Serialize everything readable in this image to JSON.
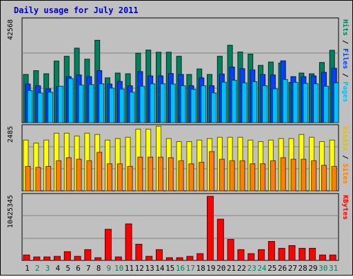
{
  "chart_data": {
    "type": "bar",
    "title": "Daily usage for July 2011",
    "categories": [
      "1",
      "2",
      "3",
      "4",
      "5",
      "6",
      "7",
      "8",
      "9",
      "10",
      "11",
      "12",
      "13",
      "14",
      "15",
      "16",
      "17",
      "18",
      "19",
      "20",
      "21",
      "22",
      "23",
      "24",
      "25",
      "26",
      "27",
      "28",
      "29",
      "30",
      "31"
    ],
    "weekend_days": [
      "2",
      "3",
      "9",
      "10",
      "16",
      "17",
      "23",
      "24",
      "30",
      "31"
    ],
    "panels": [
      {
        "id": "hits",
        "max_label": "42568",
        "ylim": [
          0,
          42568
        ],
        "right_labels": [
          {
            "text": "Hits",
            "color": "#00805c"
          },
          {
            "text": " / ",
            "color": "#000000"
          },
          {
            "text": "Files",
            "color": "#0040ff"
          },
          {
            "text": " / ",
            "color": "#000000"
          },
          {
            "text": "Pages",
            "color": "#00c0ff"
          }
        ],
        "series": [
          {
            "name": "Hits",
            "color": "#00805c",
            "values": [
              20100,
              21700,
              20400,
              25700,
              27700,
              31100,
              26500,
              34400,
              18700,
              20700,
              20400,
              29000,
              30300,
              29400,
              29400,
              27700,
              20100,
              22400,
              20100,
              27700,
              32300,
              29500,
              28600,
              23900,
              25300,
              24900,
              16800,
              20700,
              20400,
              25100,
              30200
            ]
          },
          {
            "name": "Files",
            "color": "#0040ff",
            "values": [
              16100,
              15400,
              14100,
              15100,
              19200,
              19900,
              19200,
              21700,
              16100,
              17200,
              15400,
              21300,
              19500,
              19500,
              20500,
              20100,
              15400,
              18700,
              15400,
              20300,
              23200,
              22500,
              22000,
              20100,
              19900,
              25800,
              19200,
              19200,
              19500,
              21000,
              22700
            ]
          },
          {
            "name": "Pages",
            "color": "#00c0ff",
            "values": [
              13400,
              12400,
              12700,
              15200,
              18400,
              15700,
              15900,
              16200,
              14400,
              14000,
              12700,
              15200,
              16200,
              16200,
              16100,
              15400,
              13900,
              15400,
              12400,
              16900,
              17700,
              16600,
              17100,
              15400,
              14100,
              18000,
              16800,
              16400,
              16200,
              15200,
              16600
            ]
          }
        ]
      },
      {
        "id": "visits",
        "max_label": "2485",
        "ylim": [
          0,
          2485
        ],
        "right_labels": [
          {
            "text": "Visits",
            "color": "#e0c000"
          },
          {
            "text": " / ",
            "color": "#000000"
          },
          {
            "text": "Sites",
            "color": "#ff8000"
          }
        ],
        "series": [
          {
            "name": "Visits",
            "color": "#ffff00",
            "values": [
              1990,
              1870,
              1990,
              2260,
              2260,
              2150,
              2260,
              2210,
              1990,
              2050,
              2100,
              2420,
              2420,
              2530,
              2050,
              1930,
              1930,
              1990,
              2050,
              2100,
              2100,
              2100,
              1990,
              1930,
              1990,
              2050,
              2050,
              2210,
              2100,
              1930,
              1990
            ]
          },
          {
            "name": "Sites",
            "color": "#ff8000",
            "values": [
              960,
              920,
              960,
              1180,
              1300,
              1240,
              1180,
              1510,
              1060,
              1060,
              960,
              1320,
              1320,
              1320,
              1300,
              1180,
              1060,
              1120,
              1540,
              1240,
              1180,
              1180,
              1060,
              1060,
              1180,
              1300,
              1240,
              1240,
              1180,
              1000,
              960
            ]
          }
        ]
      },
      {
        "id": "kbytes",
        "max_label": "10425345",
        "ylim": [
          0,
          10425345
        ],
        "right_labels": [
          {
            "text": "KBytes",
            "color": "#ff0000"
          }
        ],
        "series": [
          {
            "name": "KBytes",
            "color": "#ff0000",
            "values": [
              880000,
              560000,
              560000,
              660000,
              1420000,
              660000,
              1750000,
              440000,
              5060000,
              560000,
              5940000,
              2630000,
              660000,
              1750000,
              440000,
              440000,
              660000,
              1100000,
              10425345,
              6710000,
              3410000,
              1750000,
              1100000,
              1750000,
              3080000,
              1970000,
              2410000,
              1970000,
              1970000,
              880000,
              880000
            ]
          }
        ]
      }
    ]
  }
}
